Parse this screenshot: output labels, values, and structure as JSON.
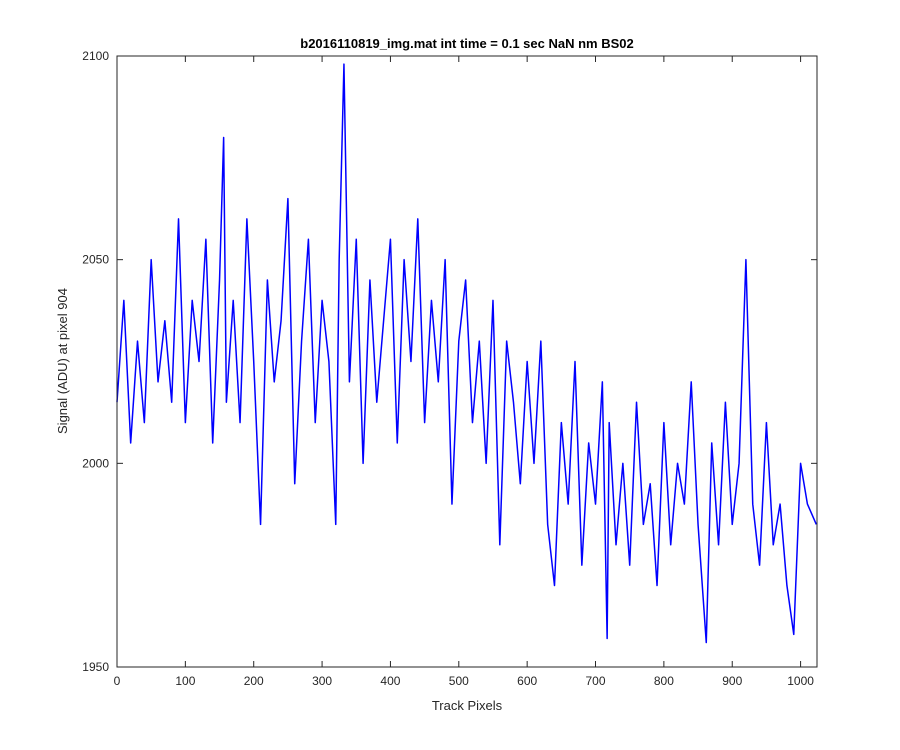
{
  "chart_data": {
    "type": "line",
    "title": "b2016110819_img.mat int time = 0.1 sec  NaN nm BS02",
    "xlabel": "Track Pixels",
    "ylabel": "Signal (ADU) at pixel 904",
    "xlim": [
      0,
      1024
    ],
    "ylim": [
      1950,
      2100
    ],
    "xticks": [
      "0",
      "100",
      "200",
      "300",
      "400",
      "500",
      "600",
      "700",
      "800",
      "900",
      "1000"
    ],
    "yticks": [
      "1950",
      "2000",
      "2050",
      "2100"
    ],
    "grid": false,
    "legend": "none",
    "series": [
      {
        "color": "#0000ff",
        "x": [
          0,
          10,
          20,
          30,
          40,
          50,
          60,
          70,
          80,
          90,
          100,
          110,
          120,
          130,
          140,
          150,
          156,
          160,
          170,
          180,
          190,
          200,
          210,
          220,
          230,
          240,
          250,
          260,
          270,
          280,
          290,
          300,
          310,
          320,
          325,
          332,
          340,
          350,
          360,
          370,
          380,
          390,
          400,
          410,
          420,
          430,
          440,
          450,
          460,
          470,
          480,
          490,
          500,
          510,
          520,
          530,
          540,
          550,
          560,
          570,
          580,
          590,
          600,
          610,
          620,
          630,
          640,
          650,
          660,
          670,
          680,
          690,
          700,
          710,
          717,
          720,
          730,
          740,
          750,
          760,
          770,
          780,
          790,
          800,
          810,
          820,
          830,
          840,
          850,
          862,
          870,
          880,
          890,
          900,
          910,
          920,
          930,
          940,
          950,
          960,
          970,
          980,
          990,
          1000,
          1010,
          1023
        ],
        "y": [
          2015,
          2040,
          2005,
          2030,
          2010,
          2050,
          2020,
          2035,
          2015,
          2060,
          2010,
          2040,
          2025,
          2055,
          2005,
          2045,
          2080,
          2015,
          2040,
          2010,
          2060,
          2025,
          1985,
          2045,
          2020,
          2035,
          2065,
          1995,
          2030,
          2055,
          2010,
          2040,
          2025,
          1985,
          2050,
          2098,
          2020,
          2055,
          2000,
          2045,
          2015,
          2035,
          2055,
          2005,
          2050,
          2025,
          2060,
          2010,
          2040,
          2020,
          2050,
          1990,
          2030,
          2045,
          2010,
          2030,
          2000,
          2040,
          1980,
          2030,
          2015,
          1995,
          2025,
          2000,
          2030,
          1985,
          1970,
          2010,
          1990,
          2025,
          1975,
          2005,
          1990,
          2020,
          1957,
          2010,
          1980,
          2000,
          1975,
          2015,
          1985,
          1995,
          1970,
          2010,
          1980,
          2000,
          1990,
          2020,
          1985,
          1956,
          2005,
          1980,
          2015,
          1985,
          2000,
          2050,
          1990,
          1975,
          2010,
          1980,
          1990,
          1970,
          1958,
          2000,
          1990,
          1985
        ]
      }
    ]
  }
}
